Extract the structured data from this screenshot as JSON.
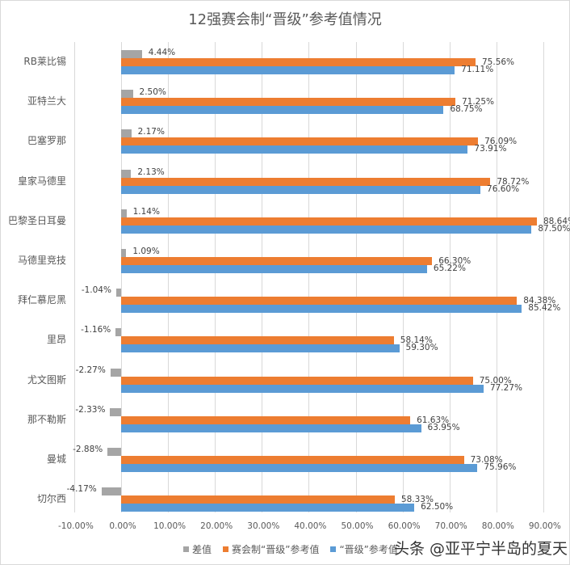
{
  "chart_data": {
    "type": "bar",
    "orientation": "horizontal",
    "title": "12强赛会制“晋级”参考值情况",
    "xlabel": "",
    "ylabel": "",
    "xlim": [
      -0.1,
      0.9
    ],
    "x_ticks": [
      "-10.00%",
      "0.00%",
      "10.00%",
      "20.00%",
      "30.00%",
      "40.00%",
      "50.00%",
      "60.00%",
      "70.00%",
      "80.00%",
      "90.00%"
    ],
    "grid": true,
    "legend_position": "bottom",
    "categories": [
      "RB莱比锡",
      "亚特兰大",
      "巴塞罗那",
      "皇家马德里",
      "巴黎圣日耳曼",
      "马德里竞技",
      "拜仁慕尼黑",
      "里昂",
      "尤文图斯",
      "那不勒斯",
      "曼城",
      "切尔西"
    ],
    "series": [
      {
        "name": "差值",
        "color": "#a5a5a5",
        "values": [
          4.44,
          2.5,
          2.17,
          2.13,
          1.14,
          1.09,
          -1.04,
          -1.16,
          -2.27,
          -2.33,
          -2.88,
          -4.17
        ],
        "labels": [
          "4.44%",
          "2.50%",
          "2.17%",
          "2.13%",
          "1.14%",
          "1.09%",
          "-1.04%",
          "-1.16%",
          "-2.27%",
          "-2.33%",
          "-2.88%",
          "-4.17%"
        ]
      },
      {
        "name": "赛会制“晋级”参考值",
        "color": "#ed7d31",
        "values": [
          75.56,
          71.25,
          76.09,
          78.72,
          88.64,
          66.3,
          84.38,
          58.14,
          75.0,
          61.63,
          73.08,
          58.33
        ],
        "labels": [
          "75.56%",
          "71.25%",
          "76.09%",
          "78.72%",
          "88.64%",
          "66.30%",
          "84.38%",
          "58.14%",
          "75.00%",
          "61.63%",
          "73.08%",
          "58.33%"
        ]
      },
      {
        "name": "“晋级”参考值",
        "color": "#5b9bd5",
        "values": [
          71.11,
          68.75,
          73.91,
          76.6,
          87.5,
          65.22,
          85.42,
          59.3,
          77.27,
          63.95,
          75.96,
          62.5
        ],
        "labels": [
          "71.11%",
          "68.75%",
          "73.91%",
          "76.60%",
          "87.50%",
          "65.22%",
          "85.42%",
          "59.30%",
          "77.27%",
          "63.95%",
          "75.96%",
          "62.50%"
        ]
      }
    ]
  },
  "legend": [
    "差值",
    "赛会制“晋级”参考值",
    "“晋级”参考值"
  ],
  "watermark": "头条 @亚平宁半岛的夏天"
}
